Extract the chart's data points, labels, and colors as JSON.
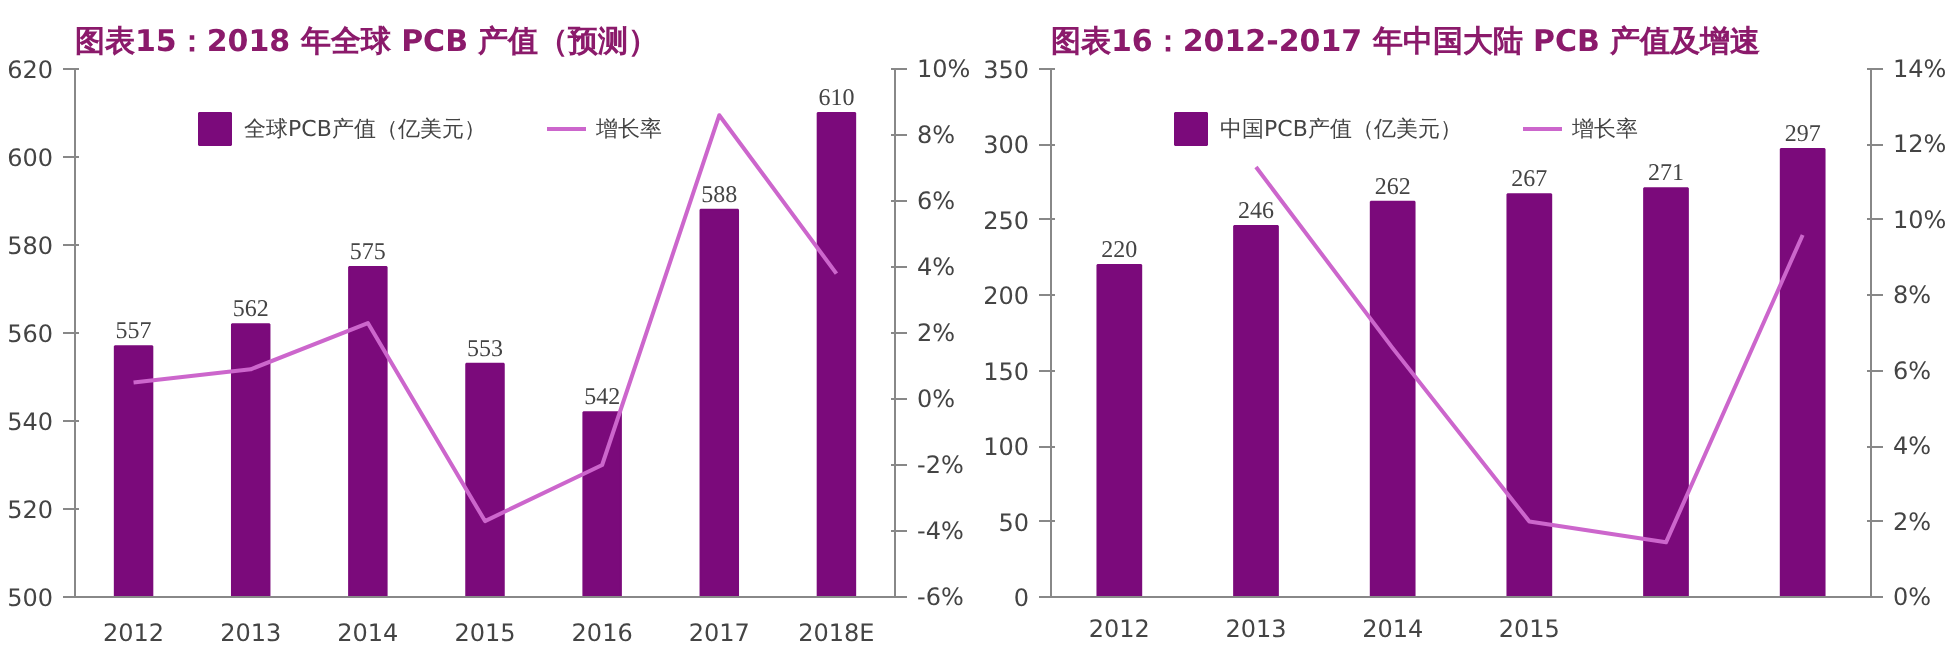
{
  "chart_data": [
    {
      "type": "bar",
      "title": "图表15：2018 年全球 PCB 产值（预测）",
      "categories": [
        "2012",
        "2013",
        "2014",
        "2015",
        "2016",
        "2017",
        "2018E"
      ],
      "series": [
        {
          "name": "全球PCB产值（亿美元）",
          "color": "#7b0a7b",
          "values": [
            557,
            562,
            575,
            553,
            542,
            588,
            610
          ],
          "value_labels": [
            "557",
            "562",
            "575",
            "553",
            "542",
            "588",
            "610"
          ]
        },
        {
          "type": "line",
          "name": "增长率",
          "color": "#cc66cc",
          "axis": "y2",
          "values": [
            0.5,
            0.9,
            2.3,
            -3.7,
            -2.0,
            8.6,
            3.8
          ]
        }
      ],
      "ylim": [
        500,
        620
      ],
      "yticks": [
        500,
        520,
        540,
        560,
        580,
        600,
        620
      ],
      "y2lim": [
        -6,
        10
      ],
      "y2ticks": [
        {
          "value": -6,
          "label": "-6%"
        },
        {
          "value": -4,
          "label": "-4%"
        },
        {
          "value": -2,
          "label": "-2%"
        },
        {
          "value": 0,
          "label": "0%"
        },
        {
          "value": 2,
          "label": "2%"
        },
        {
          "value": 4,
          "label": "4%"
        },
        {
          "value": 6,
          "label": "6%"
        },
        {
          "value": 8,
          "label": "8%"
        },
        {
          "value": 10,
          "label": "10%"
        }
      ],
      "legend": "top",
      "grid": false,
      "marker": "none",
      "line_style": "solid"
    },
    {
      "type": "bar",
      "title": "图表16：2012-2017 年中国大陆 PCB 产值及增速",
      "categories": [
        "2012",
        "2013",
        "2014",
        "2015",
        null,
        null
      ],
      "series": [
        {
          "name": "中国PCB产值（亿美元）",
          "color": "#7b0a7b",
          "values": [
            220,
            246,
            262,
            267,
            271,
            297
          ],
          "value_labels": [
            "220",
            "246",
            "262",
            "267",
            "271",
            "297"
          ]
        },
        {
          "type": "line",
          "name": "增长率",
          "color": "#cc66cc",
          "axis": "y2",
          "values": [
            null,
            11.4,
            6.6,
            2.0,
            1.45,
            9.6
          ]
        }
      ],
      "ylim": [
        0,
        350
      ],
      "yticks": [
        0,
        50,
        100,
        150,
        200,
        250,
        300,
        350
      ],
      "y2lim": [
        0,
        14
      ],
      "y2ticks": [
        {
          "value": 0,
          "label": "0%"
        },
        {
          "value": 2,
          "label": "2%"
        },
        {
          "value": 4,
          "label": "4%"
        },
        {
          "value": 6,
          "label": "6%"
        },
        {
          "value": 8,
          "label": "8%"
        },
        {
          "value": 10,
          "label": "10%"
        },
        {
          "value": 12,
          "label": "12%"
        },
        {
          "value": 14,
          "label": "14%"
        }
      ],
      "legend": "top",
      "grid": false,
      "marker": "none",
      "line_style": "solid"
    }
  ]
}
